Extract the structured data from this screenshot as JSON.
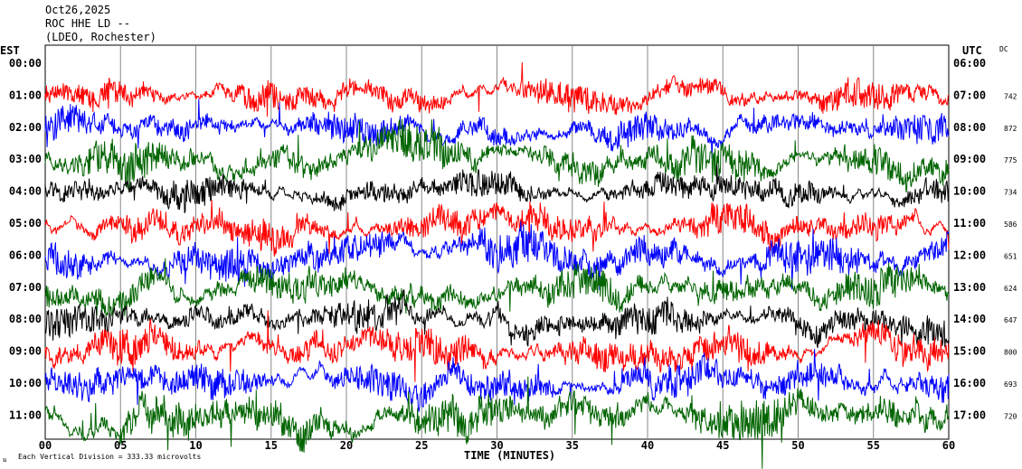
{
  "header": {
    "date": "Oct26,2025",
    "station": "ROC HHE LD --",
    "network": "(LDEO, Rochester)"
  },
  "labels": {
    "left_zone": "EST",
    "right_zone": "UTC",
    "dc": "DC",
    "footer_note": "Each Vertical Division =  333.33 microvolts",
    "corner_mark": "ม"
  },
  "chart_data": {
    "type": "line",
    "title": "",
    "xlabel": "TIME (MINUTES)",
    "ylabel": "",
    "xlim": [
      0,
      60
    ],
    "x_ticks": [
      "00",
      "05",
      "10",
      "15",
      "20",
      "25",
      "30",
      "35",
      "40",
      "45",
      "50",
      "55",
      "60"
    ],
    "grid": true,
    "left_time_labels": [
      "00:00",
      "01:00",
      "02:00",
      "03:00",
      "04:00",
      "05:00",
      "06:00",
      "07:00",
      "08:00",
      "09:00",
      "10:00",
      "11:00"
    ],
    "right_time_labels": [
      "06:00",
      "07:00",
      "08:00",
      "09:00",
      "10:00",
      "11:00",
      "12:00",
      "13:00",
      "14:00",
      "15:00",
      "16:00",
      "17:00"
    ],
    "dc_values": [
      "",
      "742",
      "872",
      "775",
      "734",
      "586",
      "651",
      "624",
      "647",
      "800",
      "693",
      "720"
    ],
    "trace_colors": [
      "#ff0000",
      "#0000ff",
      "#006400",
      "#000000",
      "#ff0000",
      "#0000ff",
      "#006400",
      "#000000",
      "#ff0000",
      "#0000ff",
      "#006400"
    ],
    "trace_amplitude_divisions": [
      0.45,
      0.45,
      0.6,
      0.45,
      0.5,
      0.6,
      0.55,
      0.5,
      0.55,
      0.55,
      0.65
    ]
  }
}
